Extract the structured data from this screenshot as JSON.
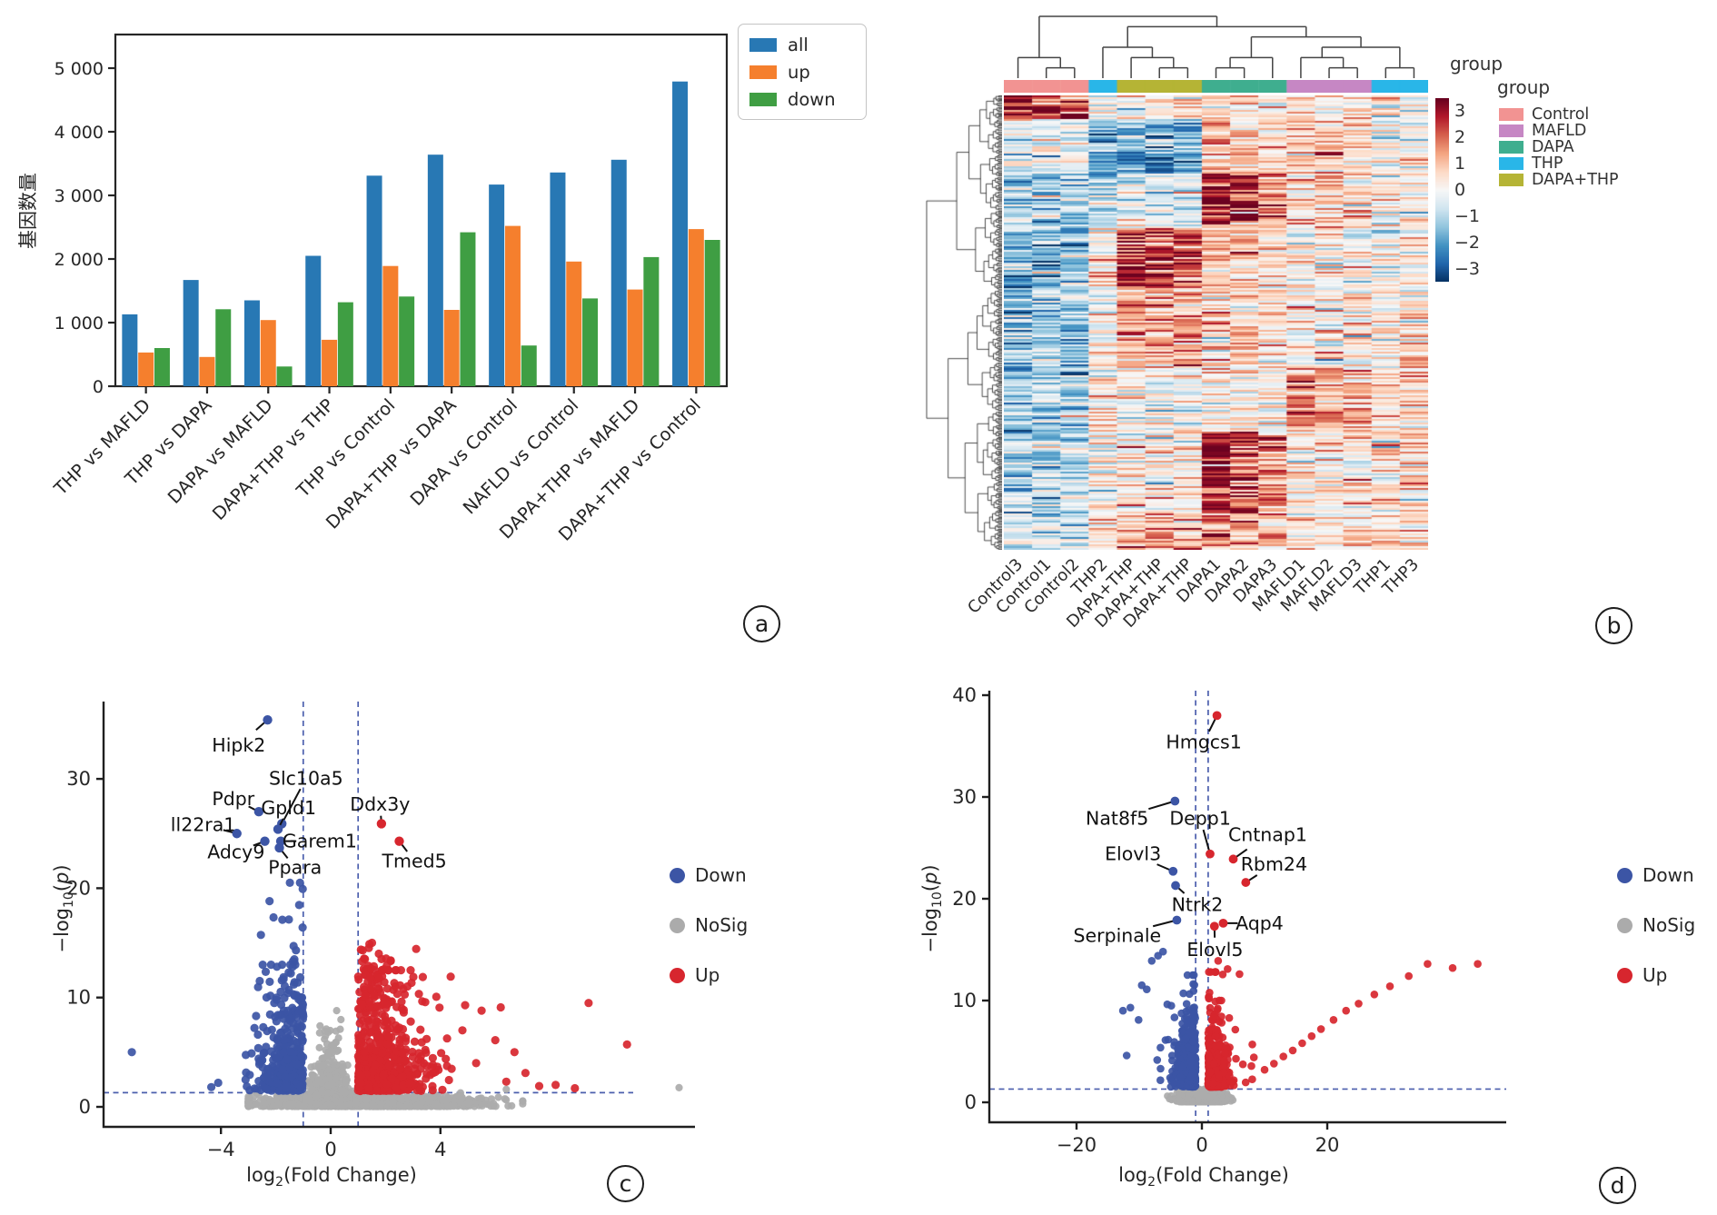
{
  "figure": {
    "background": "#ffffff",
    "panel_labels": [
      "a",
      "b",
      "c",
      "d"
    ]
  },
  "chart_data": [
    {
      "panel": "a",
      "type": "bar",
      "ylabel": "基因数量",
      "categories": [
        "THP vs MAFLD",
        "THP vs DAPA",
        "DAPA vs MAFLD",
        "DAPA+THP vs THP",
        "THP vs Control",
        "DAPA+THP vs DAPA",
        "DAPA vs Control",
        "NAFLD vs Control",
        "DAPA+THP vs MAFLD",
        "DAPA+THP vs Control"
      ],
      "series": [
        {
          "name": "all",
          "color": "#2878b4",
          "values": [
            1130,
            1670,
            1350,
            2050,
            3310,
            3640,
            3170,
            3360,
            3560,
            4790
          ]
        },
        {
          "name": "up",
          "color": "#f57f2d",
          "values": [
            530,
            460,
            1040,
            730,
            1890,
            1200,
            2520,
            1960,
            1520,
            2470
          ]
        },
        {
          "name": "down",
          "color": "#3f9e43",
          "values": [
            600,
            1210,
            310,
            1320,
            1410,
            2420,
            640,
            1380,
            2030,
            2300
          ]
        }
      ],
      "yticks": [
        0,
        1000,
        2000,
        3000,
        4000,
        5000
      ],
      "ytick_labels": [
        "0",
        "1 000",
        "2 000",
        "3 000",
        "4 000",
        "5 000"
      ],
      "ylim": [
        0,
        5550
      ],
      "legend_position": "upper right"
    },
    {
      "panel": "b",
      "type": "heatmap",
      "columns": [
        "Control3",
        "Control1",
        "Control2",
        "THP2",
        "DAPA+THP",
        "DAPA+THP",
        "DAPA+THP",
        "DAPA1",
        "DAPA2",
        "DAPA3",
        "MAFLD1",
        "MAFLD2",
        "MAFLD3",
        "THP1",
        "THP3"
      ],
      "column_groups": [
        "Control",
        "Control",
        "Control",
        "THP",
        "DAPA+THP",
        "DAPA+THP",
        "DAPA+THP",
        "DAPA",
        "DAPA",
        "DAPA",
        "MAFLD",
        "MAFLD",
        "MAFLD",
        "THP",
        "THP"
      ],
      "annotation_label": "group",
      "legend": {
        "title": "group",
        "entries": [
          {
            "label": "Control",
            "color": "#f29392"
          },
          {
            "label": "MAFLD",
            "color": "#c687c4"
          },
          {
            "label": "DAPA",
            "color": "#3fae8f"
          },
          {
            "label": "THP",
            "color": "#29b6e8"
          },
          {
            "label": "DAPA+THP",
            "color": "#b5b435"
          }
        ]
      },
      "colorbar": {
        "tick_labels": [
          "3",
          "2",
          "1",
          "0",
          "−1",
          "−2",
          "−3"
        ],
        "tick_values": [
          3,
          2,
          1,
          0,
          -1,
          -2,
          -3
        ],
        "vmin": -3.5,
        "vmax": 3.5
      },
      "value_range": [
        -3,
        3
      ],
      "col_tree": [
        [
          0,
          [
            1,
            2
          ]
        ],
        [
          [
            3,
            [
              4,
              [
                5,
                6
              ]
            ]
          ],
          [
            [
              [
                7,
                8
              ],
              9
            ],
            [
              [
                10,
                [
                  11,
                  12
                ]
              ],
              [
                13,
                14
              ]
            ]
          ]
        ]
      ],
      "pattern": {
        "seed": 20240707,
        "rows": 250,
        "col_keys": [
          "C",
          "C",
          "C",
          "T2",
          "DT",
          "DT",
          "DT",
          "D",
          "D",
          "D",
          "M",
          "M",
          "M",
          "T",
          "T"
        ],
        "col_gain": [
          1,
          0.95,
          0.9,
          1,
          1,
          1.05,
          0.95,
          1.25,
          0.95,
          0.7,
          1.1,
          0.95,
          0.85,
          1,
          1
        ],
        "bands": [
          {
            "to": 0.05,
            "bias": {
              "C": 2.7,
              "T2": -0.4,
              "DT": 0.2,
              "D": 0.5,
              "M": 0.6,
              "T": 0.2
            }
          },
          {
            "to": 0.17,
            "bias": {
              "C": -0.4,
              "T2": -1.6,
              "DT": -1.9,
              "D": 1.1,
              "M": 0.8,
              "T": 0.1
            }
          },
          {
            "to": 0.29,
            "bias": {
              "C": -0.8,
              "T2": -0.9,
              "DT": -0.4,
              "D": 2.4,
              "M": 1.0,
              "T": 0.2
            }
          },
          {
            "to": 0.42,
            "bias": {
              "C": -1.5,
              "T2": 0.3,
              "DT": 2.5,
              "D": 0.9,
              "M": 0.2,
              "T": 0.3
            }
          },
          {
            "to": 0.6,
            "bias": {
              "C": -1.6,
              "T2": -0.2,
              "DT": 1.4,
              "D": 0.6,
              "M": 0.3,
              "T": 0.5
            }
          },
          {
            "to": 0.74,
            "bias": {
              "C": -1.3,
              "T2": 0.4,
              "DT": 0.0,
              "D": 0.3,
              "M": 1.6,
              "T": 0.8
            }
          },
          {
            "to": 0.92,
            "bias": {
              "C": -1.1,
              "T2": 0.1,
              "DT": 0.3,
              "D": 2.3,
              "M": 0.4,
              "T": 0.4
            }
          },
          {
            "to": 1.0,
            "bias": {
              "C": -0.5,
              "T2": 0.6,
              "DT": 1.1,
              "D": 1.5,
              "M": 0.5,
              "T": 0.5
            }
          }
        ]
      }
    },
    {
      "panel": "c",
      "type": "scatter-volcano",
      "xlabel": {
        "base": "log",
        "sub": "2",
        "rest": "(Fold Change)"
      },
      "ylabel": {
        "base": "−log",
        "sub": "10",
        "open": "(",
        "p": "p",
        "close": ")"
      },
      "xticks": [
        -4,
        0,
        4
      ],
      "xtick_labels": [
        "−4",
        "0",
        "4"
      ],
      "yticks": [
        0,
        10,
        20,
        30
      ],
      "thresholds": {
        "x": [
          -1,
          1
        ],
        "y": 1.3
      },
      "legend": [
        {
          "label": "Down",
          "color": "#3c55a5"
        },
        {
          "label": "NoSig",
          "color": "#ababab"
        },
        {
          "label": "Up",
          "color": "#d7262e"
        }
      ],
      "genes": [
        {
          "name": "Hipk2",
          "x": -2.3,
          "y": 35.4,
          "dir": "down",
          "lx": -3.35,
          "ly": 33.1
        },
        {
          "name": "Slc10a5",
          "x": -1.78,
          "y": 25.9,
          "dir": "down",
          "lx": -1.1,
          "ly": 29.7
        },
        {
          "name": "Pdpr",
          "x": -2.62,
          "y": 27.0,
          "dir": "down",
          "lx": -3.55,
          "ly": 28.2
        },
        {
          "name": "Gpld1",
          "x": -1.92,
          "y": 25.4,
          "dir": "down",
          "lx": -1.4,
          "ly": 27.5
        },
        {
          "name": "ll22ra1",
          "x": -3.42,
          "y": 25.0,
          "dir": "down",
          "lx": -4.65,
          "ly": 25.8
        },
        {
          "name": "Adcy9",
          "x": -2.4,
          "y": 24.3,
          "dir": "down",
          "lx": -3.45,
          "ly": 23.3
        },
        {
          "name": "Garem1",
          "x": -1.82,
          "y": 24.3,
          "dir": "down",
          "lx": -0.4,
          "ly": 24.3
        },
        {
          "name": "Ppara",
          "x": -1.87,
          "y": 23.7,
          "dir": "down",
          "lx": -1.3,
          "ly": 21.9
        },
        {
          "name": "Ddx3y",
          "x": 1.85,
          "y": 25.9,
          "dir": "up",
          "lx": 1.8,
          "ly": 27.7
        },
        {
          "name": "Tmed5",
          "x": 2.5,
          "y": 24.3,
          "dir": "up",
          "lx": 3.05,
          "ly": 22.5
        }
      ],
      "clouds": {
        "seed": 1101,
        "items": [
          {
            "color": "nosig",
            "n": 1400,
            "kind": "blob",
            "xmu": 1.3,
            "xsig": 2.0,
            "xclip": [
              -3.0,
              7.0
            ],
            "ysig": 0.5,
            "yclip": 1.28
          },
          {
            "color": "nosig",
            "n": 450,
            "kind": "wedge",
            "xsig": 0.42,
            "ymean": 1.7,
            "ymax": 8.8
          },
          {
            "color": "down",
            "n": 400,
            "kind": "volcano",
            "side": -1,
            "xsig": 0.85,
            "xclip": 4.7,
            "ybase": 1.45,
            "ymean": 2.3,
            "yclip": 13.0
          },
          {
            "color": "down",
            "n": 60,
            "kind": "volcano",
            "side": -1,
            "xsig": 0.8,
            "xclip": 3.6,
            "ybase": 8.0,
            "ymean": 3.2,
            "yclip": 20.5
          },
          {
            "color": "up",
            "n": 700,
            "kind": "volcano",
            "side": 1,
            "xsig": 1.15,
            "xclip": 6.6,
            "ybase": 1.45,
            "ymean": 2.3,
            "yclip": 12.5
          },
          {
            "color": "up",
            "n": 80,
            "kind": "volcano",
            "side": 1,
            "xsig": 0.9,
            "xclip": 4.5,
            "ybase": 9.0,
            "ymean": 2.6,
            "yclip": 18.5
          }
        ]
      },
      "extra_points": {
        "down": [
          [
            -7.25,
            5.0
          ],
          [
            -4.35,
            1.8
          ],
          [
            -4.1,
            2.2
          ]
        ],
        "nosig": [
          [
            6.4,
            1.6
          ],
          [
            12.7,
            1.75
          ]
        ],
        "up": [
          [
            4.9,
            9.3
          ],
          [
            5.5,
            8.8
          ],
          [
            6.2,
            9.1
          ],
          [
            4.8,
            7.0
          ],
          [
            6.0,
            6.1
          ],
          [
            6.7,
            5.0
          ],
          [
            5.3,
            4.0
          ],
          [
            7.1,
            3.1
          ],
          [
            6.4,
            2.3
          ],
          [
            8.2,
            2.0
          ],
          [
            9.4,
            9.5
          ],
          [
            10.8,
            5.7
          ],
          [
            7.6,
            1.9
          ],
          [
            8.9,
            1.7
          ]
        ]
      }
    },
    {
      "panel": "d",
      "type": "scatter-volcano",
      "xlabel": {
        "base": "log",
        "sub": "2",
        "rest": "(Fold Change)"
      },
      "ylabel": {
        "base": "−log",
        "sub": "10",
        "open": "(",
        "p": "p",
        "close": ")"
      },
      "xticks": [
        -20,
        0,
        20
      ],
      "xtick_labels": [
        "−20",
        "0",
        "20"
      ],
      "yticks": [
        0,
        10,
        20,
        30,
        40
      ],
      "thresholds": {
        "x": [
          -1,
          1
        ],
        "y": 1.3
      },
      "legend": [
        {
          "label": "Down",
          "color": "#3c55a5"
        },
        {
          "label": "NoSig",
          "color": "#ababab"
        },
        {
          "label": "Up",
          "color": "#d7262e"
        }
      ],
      "genes": [
        {
          "name": "Hmgcs1",
          "x": 2.4,
          "y": 38.0,
          "dir": "up",
          "lx": 0.3,
          "ly": 35.4
        },
        {
          "name": "Nat8f5",
          "x": -4.3,
          "y": 29.6,
          "dir": "down",
          "lx": -11.5,
          "ly": 27.9
        },
        {
          "name": "Depp1",
          "x": 1.3,
          "y": 24.4,
          "dir": "up",
          "lx": -2.3,
          "ly": 27.9
        },
        {
          "name": "Cntnap1",
          "x": 5.0,
          "y": 23.9,
          "dir": "up",
          "lx": 10.5,
          "ly": 26.3
        },
        {
          "name": "Elovl3",
          "x": -4.6,
          "y": 22.7,
          "dir": "down",
          "lx": -11.0,
          "ly": 24.4
        },
        {
          "name": "Rbm24",
          "x": 7.0,
          "y": 21.6,
          "dir": "up",
          "lx": 11.5,
          "ly": 23.4
        },
        {
          "name": "Ntrk2",
          "x": -4.2,
          "y": 21.3,
          "dir": "down",
          "lx": -1.6,
          "ly": 19.4
        },
        {
          "name": "Aqp4",
          "x": 3.4,
          "y": 17.6,
          "dir": "up",
          "lx": 9.2,
          "ly": 17.6
        },
        {
          "name": "Serpinale",
          "x": -4.0,
          "y": 17.9,
          "dir": "down",
          "lx": -13.5,
          "ly": 16.4
        },
        {
          "name": "Elovl5",
          "x": 2.0,
          "y": 17.3,
          "dir": "up",
          "lx": 1.5,
          "ly": 15.2
        }
      ],
      "clouds": {
        "seed": 2202,
        "items": [
          {
            "color": "nosig",
            "n": 1200,
            "kind": "blob",
            "xmu": 0.0,
            "xsig": 1.7,
            "xclip": [
              -5.5,
              6.0
            ],
            "ysig": 0.48,
            "yclip": 1.3
          },
          {
            "color": "down",
            "n": 400,
            "kind": "volcano",
            "side": -1,
            "xsig": 1.35,
            "xclip": 8.5,
            "ybase": 1.5,
            "ymean": 2.3,
            "yclip": 12.5
          },
          {
            "color": "down",
            "n": 45,
            "kind": "volcano",
            "side": -1,
            "xsig": 2.6,
            "xclip": 12.5,
            "ybase": 2.0,
            "ymean": 3.4,
            "yclip": 15.0
          },
          {
            "color": "up",
            "n": 480,
            "kind": "volcano",
            "side": 1,
            "xsig": 1.5,
            "xclip": 8.0,
            "ybase": 1.5,
            "ymean": 2.2,
            "yclip": 12.8
          },
          {
            "color": "up",
            "n": 30,
            "kind": "volcano",
            "side": 1,
            "xsig": 3.2,
            "xclip": 16.0,
            "ybase": 1.6,
            "ymean": 2.2,
            "yclip": 8.0
          }
        ]
      },
      "extra_points": {
        "down": [
          [
            -7.0,
            14.4
          ],
          [
            -6.2,
            14.8
          ],
          [
            -8.0,
            13.9
          ],
          [
            -9.6,
            11.5
          ],
          [
            -8.8,
            11.1
          ],
          [
            -11.4,
            9.3
          ],
          [
            -12.6,
            9.0
          ],
          [
            -10.1,
            8.1
          ],
          [
            -12.0,
            4.6
          ],
          [
            -6.6,
            3.3
          ]
        ],
        "nosig": [],
        "up": [
          [
            10,
            3.2
          ],
          [
            11.5,
            3.8
          ],
          [
            13,
            4.5
          ],
          [
            14.5,
            5.1
          ],
          [
            16,
            5.8
          ],
          [
            17.5,
            6.5
          ],
          [
            19,
            7.2
          ],
          [
            21,
            8.1
          ],
          [
            23,
            9.0
          ],
          [
            25,
            9.7
          ],
          [
            27.5,
            10.6
          ],
          [
            30,
            11.4
          ],
          [
            33,
            12.4
          ],
          [
            36,
            13.6
          ],
          [
            40,
            13.2
          ],
          [
            44,
            13.6
          ],
          [
            2.6,
            13.9
          ],
          [
            4.1,
            13.1
          ],
          [
            6.0,
            12.6
          ]
        ]
      }
    }
  ]
}
